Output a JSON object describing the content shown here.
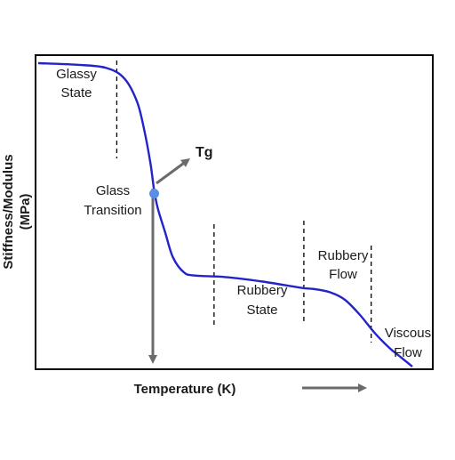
{
  "chart_data": {
    "type": "line",
    "title": "",
    "xlabel": "Temperature (K)",
    "ylabel_line1": "Stiffness/Modulus",
    "ylabel_line2": "(MPa)",
    "grid": false,
    "legend": "none",
    "series": [
      {
        "color": "#2323c8",
        "x": [
          0.0,
          0.1,
          0.18,
          0.23,
          0.265,
          0.285,
          0.3,
          0.31,
          0.32,
          0.34,
          0.36,
          0.39,
          0.42,
          0.5,
          0.6,
          0.7,
          0.74,
          0.78,
          0.82,
          0.86,
          0.9,
          0.94,
          0.97,
          0.99,
          1.0
        ],
        "y": [
          1.0,
          0.995,
          0.985,
          0.95,
          0.87,
          0.77,
          0.67,
          0.58,
          0.52,
          0.44,
          0.36,
          0.31,
          0.3,
          0.295,
          0.28,
          0.26,
          0.255,
          0.245,
          0.22,
          0.17,
          0.11,
          0.06,
          0.03,
          0.01,
          0.0
        ]
      }
    ],
    "marker": {
      "label": "Tg",
      "x": 0.31,
      "y": 0.57,
      "color": "#5b8ee6"
    },
    "dividers": [
      0.21,
      0.47,
      0.71,
      0.89
    ],
    "region_labels": [
      {
        "lines": [
          "Glassy",
          "State"
        ]
      },
      {
        "lines": [
          "Glass",
          "Transition"
        ]
      },
      {
        "lines": [
          "Rubbery",
          "State"
        ]
      },
      {
        "lines": [
          "Rubbery",
          "Flow"
        ]
      },
      {
        "lines": [
          "Viscous",
          "Flow"
        ]
      }
    ],
    "colors": {
      "curve": "#2323c8",
      "arrow": "#6b6b6b",
      "marker": "#5b8ee6",
      "frame": "#000000",
      "text": "#1a1a1a"
    }
  }
}
